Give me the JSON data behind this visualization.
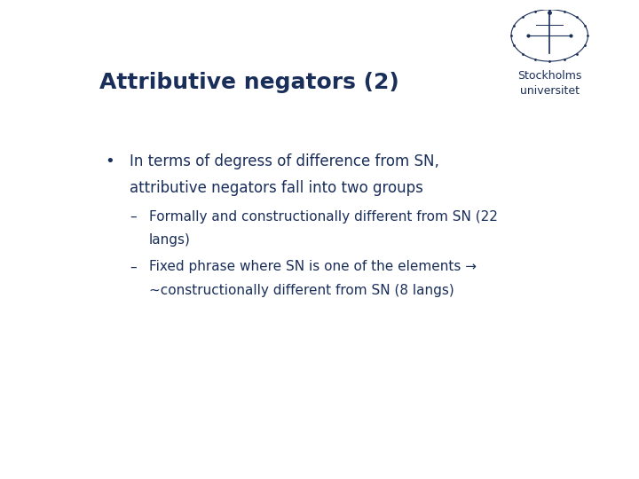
{
  "title": "Attributive negators (2)",
  "title_color": "#1a2e5a",
  "title_fontsize": 18,
  "title_bold": true,
  "bg_color": "#ffffff",
  "text_color": "#1a2e5a",
  "bullet_text_line1": "In terms of degress of difference from SN,",
  "bullet_text_line2": "attributive negators fall into two groups",
  "bullet_fontsize": 12,
  "sub_bullets": [
    [
      "Formally and constructionally different from SN (22",
      "langs)"
    ],
    [
      "Fixed phrase where SN is one of the elements →",
      "~constructionally different from SN (8 langs)"
    ]
  ],
  "sub_bullet_fontsize": 11,
  "logo_text_line1": "Stockholms",
  "logo_text_line2": "universitet",
  "logo_fontsize": 9
}
